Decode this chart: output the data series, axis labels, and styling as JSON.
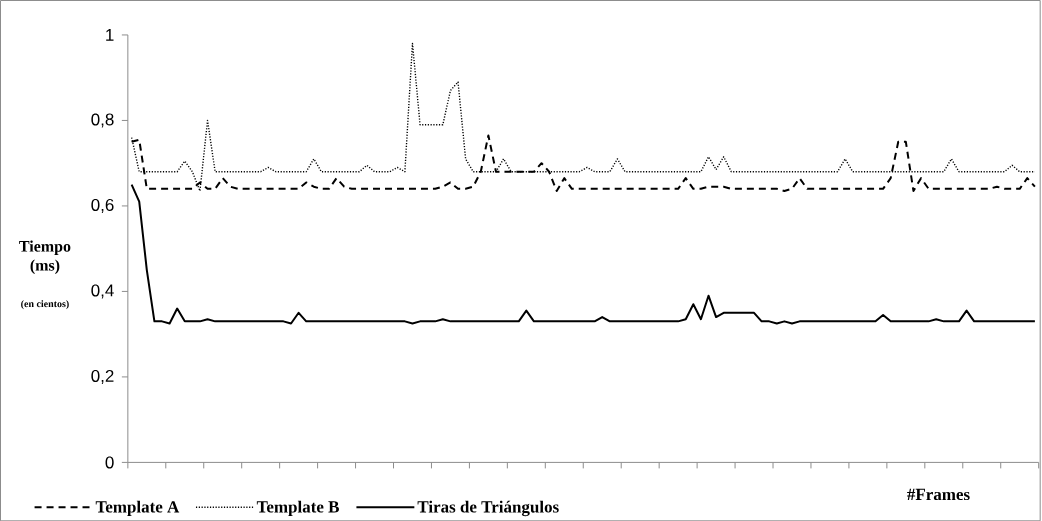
{
  "chart_data": {
    "type": "line",
    "ylabel": "Tiempo (ms)",
    "xlabel": "#Frames",
    "annotations": [
      "(en cientos)"
    ],
    "categories": [
      null,
      null,
      null,
      null,
      null,
      null,
      null,
      null,
      null,
      null,
      null,
      null,
      null,
      null,
      null,
      null,
      null,
      null,
      null,
      null,
      null,
      null,
      null,
      null,
      null,
      null,
      null,
      null,
      null,
      null,
      null,
      null,
      null,
      null,
      null,
      null,
      null,
      null,
      null,
      null,
      null,
      null,
      null,
      null,
      null,
      null,
      null,
      null,
      null,
      null,
      null,
      null,
      null,
      null,
      null,
      null,
      null,
      null,
      null,
      null,
      null,
      null,
      null,
      null,
      null,
      null,
      null,
      null,
      null,
      null,
      null,
      null,
      null,
      null,
      null,
      null,
      null,
      null,
      null,
      null,
      null,
      null,
      null,
      null,
      null,
      null,
      null,
      null,
      null,
      null,
      null,
      null,
      null,
      null,
      null,
      null,
      null,
      null,
      null,
      null,
      null,
      null,
      null,
      null,
      null,
      null,
      null,
      null,
      null,
      null,
      null,
      null,
      null,
      null,
      null,
      null,
      null,
      null,
      null,
      null
    ],
    "ylim": [
      0,
      1
    ],
    "yticks": [
      0,
      {
        "value": 0.2,
        "label": "0,2"
      },
      {
        "value": 0.4,
        "label": "0,4"
      },
      {
        "value": 0.6,
        "label": "0,6"
      },
      {
        "value": 0.8,
        "label": "0,8"
      },
      1
    ],
    "legend": "bottom",
    "marker": "none",
    "series": [
      {
        "name": "Template A",
        "color": "#000000",
        "line_style": "dashed",
        "values": [
          0.75,
          0.755,
          0.64,
          0.64,
          0.64,
          0.64,
          0.64,
          0.64,
          0.64,
          0.655,
          0.64,
          0.64,
          0.665,
          0.645,
          0.64,
          0.64,
          0.64,
          0.64,
          0.64,
          0.64,
          0.64,
          0.64,
          0.64,
          0.655,
          0.645,
          0.64,
          0.64,
          0.665,
          0.645,
          0.64,
          0.64,
          0.64,
          0.64,
          0.64,
          0.64,
          0.64,
          0.64,
          0.64,
          0.64,
          0.64,
          0.64,
          0.645,
          0.655,
          0.64,
          0.64,
          0.645,
          0.68,
          0.765,
          0.68,
          0.68,
          0.68,
          0.68,
          0.68,
          0.68,
          0.7,
          0.68,
          0.635,
          0.665,
          0.64,
          0.64,
          0.64,
          0.64,
          0.64,
          0.64,
          0.64,
          0.64,
          0.64,
          0.64,
          0.64,
          0.64,
          0.64,
          0.64,
          0.64,
          0.665,
          0.64,
          0.64,
          0.645,
          0.645,
          0.645,
          0.64,
          0.64,
          0.64,
          0.64,
          0.64,
          0.64,
          0.64,
          0.635,
          0.64,
          0.665,
          0.64,
          0.64,
          0.64,
          0.64,
          0.64,
          0.64,
          0.64,
          0.64,
          0.64,
          0.64,
          0.64,
          0.665,
          0.75,
          0.75,
          0.635,
          0.665,
          0.64,
          0.64,
          0.64,
          0.64,
          0.64,
          0.64,
          0.64,
          0.64,
          0.64,
          0.645,
          0.64,
          0.64,
          0.64,
          0.665,
          0.645
        ]
      },
      {
        "name": "Template B",
        "color": "#000000",
        "line_style": "dotted",
        "values": [
          0.76,
          0.68,
          0.68,
          0.68,
          0.68,
          0.68,
          0.68,
          0.705,
          0.68,
          0.635,
          0.8,
          0.68,
          0.68,
          0.68,
          0.68,
          0.68,
          0.68,
          0.68,
          0.69,
          0.68,
          0.68,
          0.68,
          0.68,
          0.68,
          0.71,
          0.68,
          0.68,
          0.68,
          0.68,
          0.68,
          0.68,
          0.695,
          0.68,
          0.68,
          0.68,
          0.69,
          0.68,
          0.98,
          0.79,
          0.79,
          0.79,
          0.79,
          0.87,
          0.89,
          0.71,
          0.68,
          0.68,
          0.68,
          0.68,
          0.71,
          0.68,
          0.68,
          0.68,
          0.68,
          0.68,
          0.68,
          0.68,
          0.68,
          0.68,
          0.68,
          0.69,
          0.68,
          0.68,
          0.68,
          0.71,
          0.68,
          0.68,
          0.68,
          0.68,
          0.68,
          0.68,
          0.68,
          0.68,
          0.68,
          0.68,
          0.68,
          0.715,
          0.685,
          0.715,
          0.68,
          0.68,
          0.68,
          0.68,
          0.68,
          0.68,
          0.68,
          0.68,
          0.68,
          0.68,
          0.68,
          0.68,
          0.68,
          0.68,
          0.68,
          0.71,
          0.68,
          0.68,
          0.68,
          0.68,
          0.68,
          0.68,
          0.68,
          0.68,
          0.68,
          0.68,
          0.68,
          0.68,
          0.68,
          0.71,
          0.68,
          0.68,
          0.68,
          0.68,
          0.68,
          0.68,
          0.68,
          0.695,
          0.68,
          0.68,
          0.68
        ]
      },
      {
        "name": "Tiras de Triángulos",
        "color": "#000000",
        "line_style": "solid",
        "values": [
          0.65,
          0.61,
          0.45,
          0.33,
          0.33,
          0.325,
          0.36,
          0.33,
          0.33,
          0.33,
          0.335,
          0.33,
          0.33,
          0.33,
          0.33,
          0.33,
          0.33,
          0.33,
          0.33,
          0.33,
          0.33,
          0.325,
          0.35,
          0.33,
          0.33,
          0.33,
          0.33,
          0.33,
          0.33,
          0.33,
          0.33,
          0.33,
          0.33,
          0.33,
          0.33,
          0.33,
          0.33,
          0.325,
          0.33,
          0.33,
          0.33,
          0.335,
          0.33,
          0.33,
          0.33,
          0.33,
          0.33,
          0.33,
          0.33,
          0.33,
          0.33,
          0.33,
          0.355,
          0.33,
          0.33,
          0.33,
          0.33,
          0.33,
          0.33,
          0.33,
          0.33,
          0.33,
          0.34,
          0.33,
          0.33,
          0.33,
          0.33,
          0.33,
          0.33,
          0.33,
          0.33,
          0.33,
          0.33,
          0.335,
          0.37,
          0.335,
          0.39,
          0.34,
          0.35,
          0.35,
          0.35,
          0.35,
          0.35,
          0.33,
          0.33,
          0.325,
          0.33,
          0.325,
          0.33,
          0.33,
          0.33,
          0.33,
          0.33,
          0.33,
          0.33,
          0.33,
          0.33,
          0.33,
          0.33,
          0.345,
          0.33,
          0.33,
          0.33,
          0.33,
          0.33,
          0.33,
          0.335,
          0.33,
          0.33,
          0.33,
          0.355,
          0.33,
          0.33,
          0.33,
          0.33,
          0.33,
          0.33,
          0.33,
          0.33,
          0.33
        ]
      }
    ]
  }
}
